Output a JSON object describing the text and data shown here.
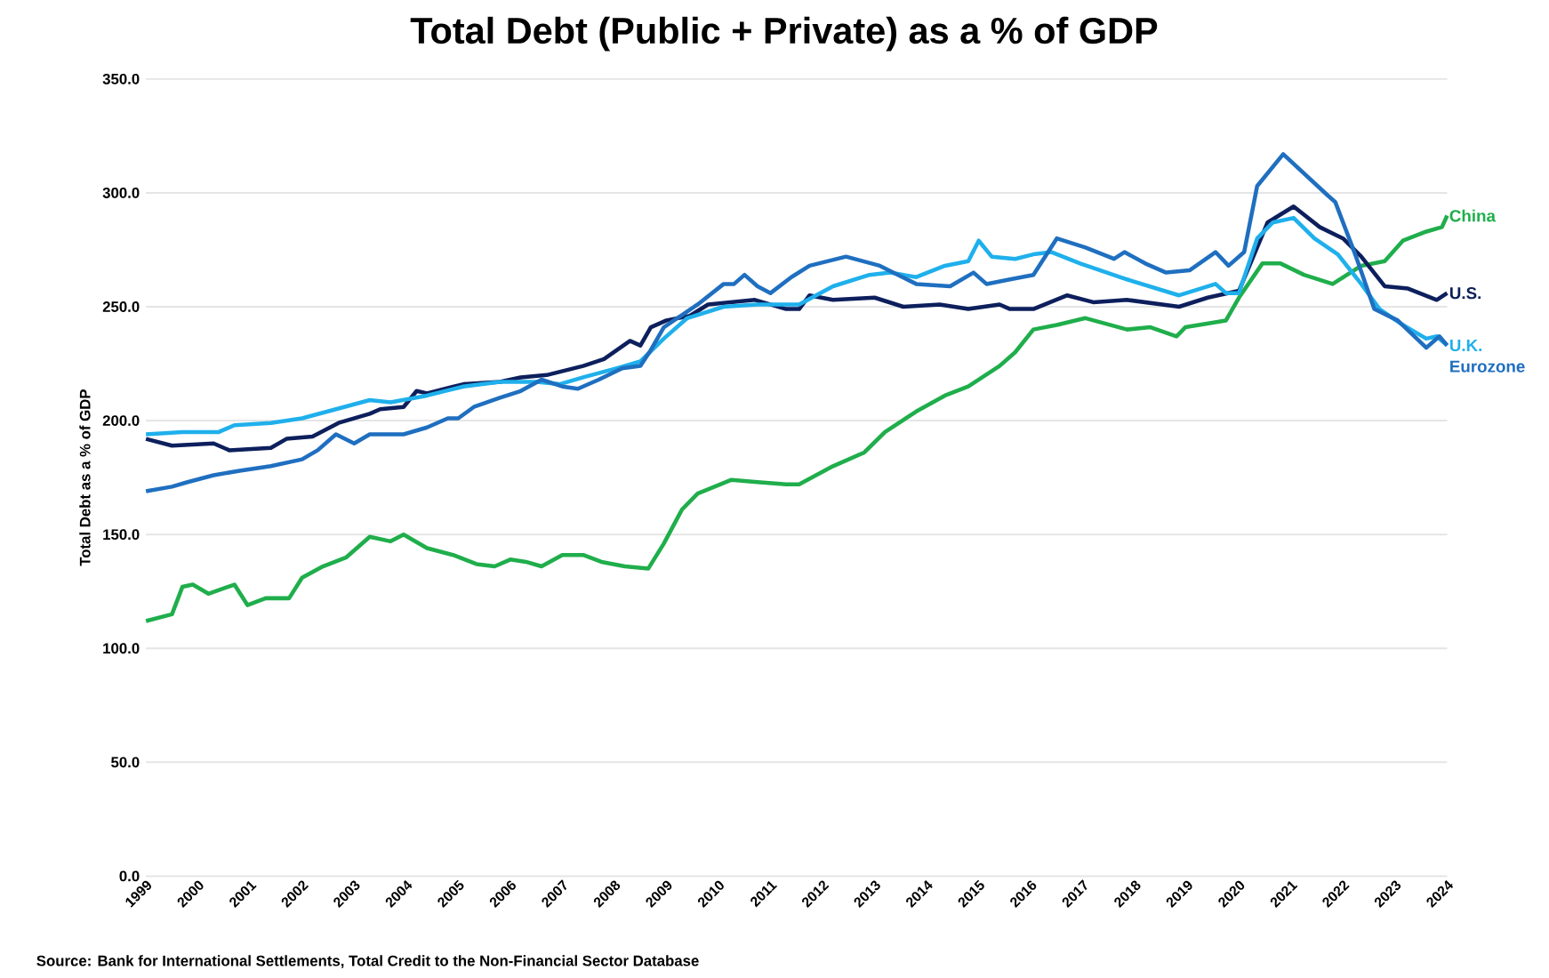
{
  "chart_data": {
    "type": "line",
    "title": "Total Debt (Public + Private) as a % of GDP",
    "ylabel": "Total Debt as a % of GDP",
    "annotations": [
      "Source: Bank for International Settlements, Total Credit to the Non-Financial Sector Database"
    ],
    "xlim": [
      1999,
      2024
    ],
    "xticks": [
      1999,
      2000,
      2001,
      2002,
      2003,
      2004,
      2005,
      2006,
      2007,
      2008,
      2009,
      2010,
      2011,
      2012,
      2013,
      2014,
      2015,
      2016,
      2017,
      2018,
      2019,
      2020,
      2021,
      2022,
      2023,
      2024
    ],
    "ylim": [
      0,
      350
    ],
    "yticks": [
      {
        "value": 0,
        "label": "0.0"
      },
      {
        "value": 50,
        "label": "50.0"
      },
      {
        "value": 100,
        "label": "100.0"
      },
      {
        "value": 150,
        "label": "150.0"
      },
      {
        "value": 200,
        "label": "200.0"
      },
      {
        "value": 250,
        "label": "250.0"
      },
      {
        "value": 300,
        "label": "300.0"
      },
      {
        "value": 350,
        "label": "350.0"
      }
    ],
    "grid": "y",
    "series": [
      {
        "name": "China",
        "color": "#1fae4b",
        "x": [
          1999,
          1999.5,
          1999.7,
          1999.9,
          2000.2,
          2000.7,
          2000.95,
          2001.3,
          2001.75,
          2002,
          2002.4,
          2002.85,
          2003.3,
          2003.7,
          2003.95,
          2004.4,
          2004.9,
          2005.35,
          2005.7,
          2006,
          2006.3,
          2006.6,
          2007,
          2007.4,
          2007.75,
          2008.2,
          2008.65,
          2008.95,
          2009.3,
          2009.6,
          2010.25,
          2010.75,
          2011.3,
          2011.55,
          2012.2,
          2012.8,
          2013.2,
          2013.8,
          2014.35,
          2014.8,
          2015.4,
          2015.7,
          2016.05,
          2016.5,
          2017.05,
          2017.85,
          2018.3,
          2018.8,
          2018.97,
          2019.75,
          2020,
          2020.45,
          2020.8,
          2021.25,
          2021.8,
          2022.35,
          2022.8,
          2023.15,
          2023.6,
          2023.9,
          2024
        ],
        "values": [
          112,
          115,
          127,
          128,
          124,
          128,
          119,
          122,
          122,
          131,
          136,
          140,
          149,
          147,
          150,
          144,
          141,
          137,
          136,
          139,
          138,
          136,
          141,
          141,
          138,
          136,
          135,
          146,
          161,
          168,
          174,
          173,
          172,
          172,
          180,
          186,
          195,
          204,
          211,
          215,
          224,
          230,
          240,
          242,
          245,
          240,
          241,
          237,
          241,
          244,
          254,
          269,
          269,
          264,
          260,
          268,
          270,
          279,
          283,
          285,
          290
        ]
      },
      {
        "name": "U.S.",
        "color": "#0d1f5c",
        "x": [
          1999,
          1999.5,
          2000.3,
          2000.6,
          2001.4,
          2001.7,
          2002.2,
          2002.7,
          2003.3,
          2003.5,
          2003.95,
          2004.2,
          2004.4,
          2005.1,
          2005.8,
          2006.2,
          2006.7,
          2007.4,
          2007.8,
          2008.3,
          2008.5,
          2008.7,
          2009,
          2009.45,
          2009.8,
          2010.7,
          2011.3,
          2011.55,
          2011.75,
          2012.2,
          2013,
          2013.55,
          2014.25,
          2014.8,
          2015.4,
          2015.6,
          2016.05,
          2016.7,
          2017.2,
          2017.85,
          2018.85,
          2019.4,
          2020,
          2020.55,
          2021.05,
          2021.55,
          2022,
          2022.35,
          2022.8,
          2023.25,
          2023.8,
          2024
        ],
        "values": [
          192,
          189,
          190,
          187,
          188,
          192,
          193,
          199,
          203,
          205,
          206,
          213,
          212,
          216,
          217,
          219,
          220,
          224,
          227,
          235,
          233,
          241,
          244,
          246,
          251,
          253,
          249,
          249,
          255,
          253,
          254,
          250,
          251,
          249,
          251,
          249,
          249,
          255,
          252,
          253,
          250,
          254,
          257,
          287,
          294,
          285,
          280,
          272,
          259,
          258,
          253,
          256
        ]
      },
      {
        "name": "U.K.",
        "color": "#1fb0ec",
        "x": [
          1999,
          1999.7,
          2000.4,
          2000.7,
          2001.4,
          2002,
          2002.65,
          2003.3,
          2003.7,
          2004.4,
          2005.1,
          2005.8,
          2006.5,
          2006.95,
          2007.4,
          2008.05,
          2008.5,
          2008.95,
          2009.4,
          2010.1,
          2010.75,
          2011.3,
          2011.55,
          2012.2,
          2012.9,
          2013.3,
          2013.8,
          2014.35,
          2014.8,
          2015,
          2015.25,
          2015.7,
          2016.05,
          2016.4,
          2016.95,
          2017.85,
          2018.85,
          2019.55,
          2019.75,
          2020,
          2020.35,
          2020.65,
          2021.05,
          2021.45,
          2021.9,
          2022.35,
          2022.7,
          2023.15,
          2023.6,
          2023.8,
          2024
        ],
        "values": [
          194,
          195,
          195,
          198,
          199,
          201,
          205,
          209,
          208,
          211,
          215,
          217,
          217,
          216,
          219,
          223,
          226,
          236,
          245,
          250,
          251,
          251,
          251,
          259,
          264,
          265,
          263,
          268,
          270,
          279,
          272,
          271,
          273,
          274,
          269,
          262,
          255,
          260,
          256,
          256,
          280,
          287,
          289,
          280,
          273,
          260,
          249,
          242,
          236,
          237,
          233
        ]
      },
      {
        "name": "Eurozone",
        "color": "#1f6fc0",
        "x": [
          1999,
          1999.5,
          1999.8,
          2000.3,
          2000.8,
          2001.4,
          2002,
          2002.3,
          2002.65,
          2003,
          2003.3,
          2003.95,
          2004.4,
          2004.8,
          2005,
          2005.3,
          2005.8,
          2006.2,
          2006.6,
          2007,
          2007.3,
          2007.7,
          2008.15,
          2008.5,
          2008.7,
          2008.95,
          2009.6,
          2010.1,
          2010.3,
          2010.5,
          2010.75,
          2011,
          2011.4,
          2011.75,
          2012.45,
          2013.1,
          2013.8,
          2014.45,
          2014.9,
          2015.15,
          2015.6,
          2016.05,
          2016.5,
          2017.05,
          2017.6,
          2017.8,
          2018.2,
          2018.6,
          2019.05,
          2019.55,
          2019.8,
          2020.1,
          2020.35,
          2020.85,
          2021.7,
          2021.85,
          2022.25,
          2022.6,
          2023.05,
          2023.6,
          2023.85,
          2024
        ],
        "values": [
          169,
          171,
          173,
          176,
          178,
          180,
          183,
          187,
          194,
          190,
          194,
          194,
          197,
          201,
          201,
          206,
          210,
          213,
          218,
          215,
          214,
          218,
          223,
          224,
          231,
          241,
          251,
          260,
          260,
          264,
          259,
          256,
          263,
          268,
          272,
          268,
          260,
          259,
          265,
          260,
          262,
          264,
          280,
          276,
          271,
          274,
          269,
          265,
          266,
          274,
          268,
          274,
          303,
          317,
          299,
          296,
          272,
          249,
          244,
          232,
          237,
          233
        ]
      }
    ]
  }
}
